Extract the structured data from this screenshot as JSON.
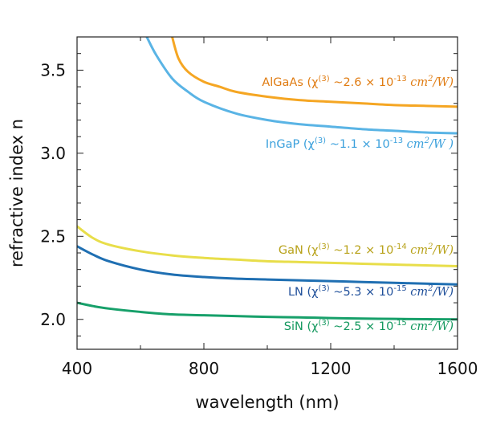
{
  "chart_data": {
    "type": "line",
    "xlabel": "wavelength (nm)",
    "ylabel": "refractive index n",
    "xlim": [
      400,
      1600
    ],
    "ylim": [
      1.82,
      3.7
    ],
    "x_ticks": [
      "400",
      "800",
      "1200",
      "1600"
    ],
    "y_ticks": [
      "2.0",
      "2.5",
      "3.0",
      "3.5"
    ],
    "grid": false,
    "series": [
      {
        "name": "AlGaAs",
        "color": "#f5a623",
        "x": [
          700,
          720,
          750,
          800,
          850,
          900,
          1000,
          1100,
          1200,
          1300,
          1400,
          1500,
          1600
        ],
        "y": [
          3.7,
          3.57,
          3.49,
          3.43,
          3.4,
          3.37,
          3.34,
          3.32,
          3.31,
          3.3,
          3.29,
          3.285,
          3.28
        ]
      },
      {
        "name": "InGaP",
        "color": "#5ab4e5",
        "x": [
          620,
          650,
          700,
          750,
          800,
          900,
          1000,
          1100,
          1200,
          1300,
          1400,
          1500,
          1600
        ],
        "y": [
          3.7,
          3.59,
          3.45,
          3.37,
          3.31,
          3.24,
          3.2,
          3.175,
          3.16,
          3.145,
          3.135,
          3.125,
          3.12
        ]
      },
      {
        "name": "GaN",
        "color": "#e8de4a",
        "x": [
          400,
          450,
          500,
          600,
          700,
          800,
          900,
          1000,
          1100,
          1200,
          1300,
          1400,
          1500,
          1600
        ],
        "y": [
          2.56,
          2.49,
          2.45,
          2.41,
          2.385,
          2.37,
          2.36,
          2.35,
          2.345,
          2.34,
          2.335,
          2.33,
          2.325,
          2.32
        ]
      },
      {
        "name": "LN",
        "color": "#1f6fb2",
        "x": [
          400,
          450,
          500,
          600,
          700,
          800,
          900,
          1000,
          1100,
          1200,
          1300,
          1400,
          1500,
          1600
        ],
        "y": [
          2.44,
          2.39,
          2.35,
          2.3,
          2.27,
          2.255,
          2.245,
          2.24,
          2.235,
          2.23,
          2.225,
          2.22,
          2.215,
          2.21
        ]
      },
      {
        "name": "SiN",
        "color": "#17a06a",
        "x": [
          400,
          450,
          500,
          600,
          700,
          800,
          900,
          1000,
          1100,
          1200,
          1300,
          1400,
          1500,
          1600
        ],
        "y": [
          2.1,
          2.08,
          2.065,
          2.045,
          2.03,
          2.025,
          2.02,
          2.015,
          2.012,
          2.008,
          2.005,
          2.003,
          2.001,
          2.0
        ]
      }
    ],
    "annotations": [
      {
        "series": "AlGaAs",
        "color": "#e07c12",
        "name": "AlGaAs",
        "chi": "(χ",
        "sup": "(3)",
        "mid": " ~2.6 × 10",
        "exp": "-13",
        "unit1": "cm",
        "unit_exp": "2",
        "unit2": "/W)"
      },
      {
        "series": "InGaP",
        "color": "#3aa0dc",
        "name": "InGaP",
        "chi": "(χ",
        "sup": "(3)",
        "mid": " ~1.1 × 10",
        "exp": "-13",
        "unit1": "cm",
        "unit_exp": "2",
        "unit2": "/W )"
      },
      {
        "series": "GaN",
        "color": "#b8a21a",
        "name": "GaN",
        "chi": "(χ",
        "sup": "(3)",
        "mid": " ~1.2 × 10",
        "exp": "-14",
        "unit1": "cm",
        "unit_exp": "2",
        "unit2": "/W)"
      },
      {
        "series": "LN",
        "color": "#1f4f9a",
        "name": "LN",
        "chi": "(χ",
        "sup": "(3)",
        "mid": " ~5.3 × 10",
        "exp": "-15",
        "unit1": "cm",
        "unit_exp": "2",
        "unit2": "/W)"
      },
      {
        "series": "SiN",
        "color": "#13985e",
        "name": "SiN",
        "chi": "(χ",
        "sup": "(3)",
        "mid": " ~2.5 × 10",
        "exp": "-15",
        "unit1": "cm",
        "unit_exp": "2",
        "unit2": "/W)"
      }
    ]
  }
}
